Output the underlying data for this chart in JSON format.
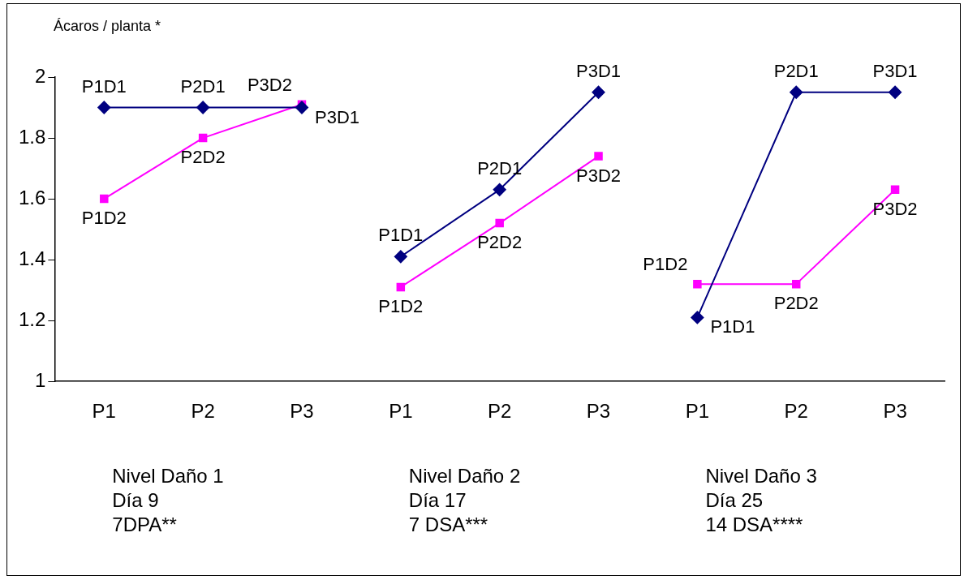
{
  "chart_data": {
    "type": "line",
    "ylabel": "Ácaros / planta *",
    "categories": [
      "P1",
      "P2",
      "P3",
      "P1",
      "P2",
      "P3",
      "P1",
      "P2",
      "P3"
    ],
    "series": [
      {
        "color": "#000080",
        "marker": "diamond",
        "values": [
          1.9,
          1.9,
          1.9,
          null,
          null,
          null,
          null,
          null,
          null
        ],
        "value_labels": [
          "P1D1",
          "P2D1",
          "P3D1",
          null,
          null,
          null,
          null,
          null,
          null
        ]
      },
      {
        "color": "#000080",
        "marker": "diamond",
        "values": [
          null,
          null,
          null,
          1.41,
          1.63,
          1.95,
          null,
          null,
          null
        ],
        "value_labels": [
          null,
          null,
          null,
          "P1D1",
          "P2D1",
          "P3D1",
          null,
          null,
          null
        ]
      },
      {
        "color": "#000080",
        "marker": "diamond",
        "values": [
          null,
          null,
          null,
          null,
          null,
          null,
          1.21,
          1.95,
          1.95
        ],
        "value_labels": [
          null,
          null,
          null,
          null,
          null,
          null,
          "P1D1",
          "P2D1",
          "P3D1"
        ]
      },
      {
        "color": "#ff00ff",
        "marker": "square",
        "values": [
          1.6,
          1.8,
          1.91,
          null,
          null,
          null,
          null,
          null,
          null
        ],
        "value_labels": [
          "P1D2",
          "P2D2",
          "P3D2",
          null,
          null,
          null,
          null,
          null,
          null
        ]
      },
      {
        "color": "#ff00ff",
        "marker": "square",
        "values": [
          null,
          null,
          null,
          1.31,
          1.52,
          1.74,
          null,
          null,
          null
        ],
        "value_labels": [
          null,
          null,
          null,
          "P1D2",
          "P2D2",
          "P3D2",
          null,
          null,
          null
        ]
      },
      {
        "color": "#ff00ff",
        "marker": "square",
        "values": [
          null,
          null,
          null,
          null,
          null,
          null,
          1.32,
          1.32,
          1.63
        ],
        "value_labels": [
          null,
          null,
          null,
          null,
          null,
          null,
          "P1D2",
          "P2D2",
          "P3D2"
        ]
      }
    ],
    "ylim": [
      1,
      2
    ],
    "yticks": [
      1,
      1.2,
      1.4,
      1.6,
      1.8,
      2
    ],
    "grid": false,
    "legend": false,
    "annotations": [
      "Nivel Daño 1\nDía 9\n7DPA**",
      "Nivel Daño 2\nDía 17\n7 DSA***",
      "Nivel Daño 3\nDía 25\n14 DSA****"
    ]
  }
}
